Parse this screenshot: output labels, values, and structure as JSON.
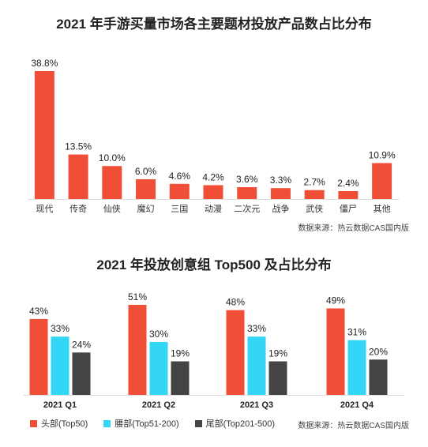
{
  "chart_data": [
    {
      "type": "bar",
      "title": "2021 年手游买量市场各主要题材投放产品数占比分布",
      "categories": [
        "现代",
        "传奇",
        "仙侠",
        "魔幻",
        "三国",
        "动漫",
        "二次元",
        "战争",
        "武侠",
        "僵尸",
        "其他"
      ],
      "values": [
        38.8,
        13.5,
        10.0,
        6.0,
        4.6,
        4.2,
        3.6,
        3.3,
        2.7,
        2.4,
        10.9
      ],
      "value_labels": [
        "38.8%",
        "13.5%",
        "10.0%",
        "6.0%",
        "4.6%",
        "4.2%",
        "3.6%",
        "3.3%",
        "2.7%",
        "2.4%",
        "10.9%"
      ],
      "ylim": [
        0,
        40
      ],
      "color": "#f04e37",
      "source": "数据来源：热云数据CAS国内版"
    },
    {
      "type": "bar",
      "title": "2021 年投放创意组 Top500 及占比分布",
      "categories": [
        "2021 Q1",
        "2021 Q2",
        "2021 Q3",
        "2021 Q4"
      ],
      "series": [
        {
          "name": "头部(Top50)",
          "color": "#f04e37",
          "values": [
            43,
            51,
            48,
            49
          ]
        },
        {
          "name": "腰部(Top51-200)",
          "color": "#33d6f4",
          "values": [
            33,
            30,
            33,
            31
          ]
        },
        {
          "name": "尾部(Top201-500)",
          "color": "#444444",
          "values": [
            24,
            19,
            19,
            20
          ]
        }
      ],
      "value_suffix": "%",
      "ylim": [
        0,
        52
      ],
      "legend": "bottom-left",
      "source": "数据来源：热云数据CAS国内版"
    }
  ]
}
